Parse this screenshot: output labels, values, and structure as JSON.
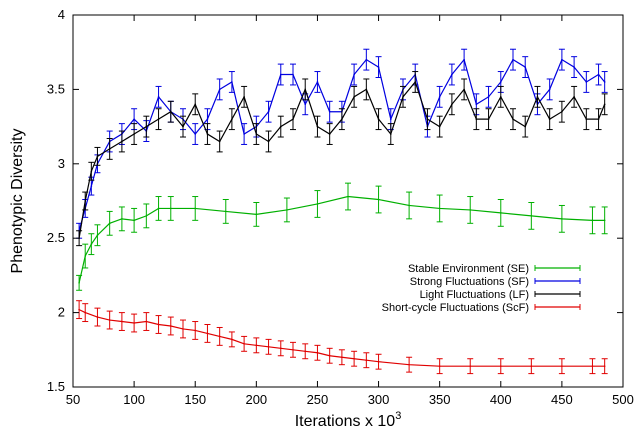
{
  "chart_data": {
    "type": "line",
    "xlabel": "Iterations x 10",
    "xlabel_superscript": "3",
    "ylabel": "Phenotypic Diversity",
    "xlim": [
      50,
      500
    ],
    "ylim": [
      1.5,
      4
    ],
    "xticks": [
      50,
      100,
      150,
      200,
      250,
      300,
      350,
      400,
      450,
      500
    ],
    "yticks": [
      1.5,
      2,
      2.5,
      3,
      3.5,
      4
    ],
    "ytick_labels": [
      "1.5",
      "2",
      "2.5",
      "3",
      "3.5",
      "4"
    ],
    "grid": false,
    "error_bars": true,
    "legend_position": "middle-right",
    "series": [
      {
        "name": "Stable Environment (SE)",
        "color": "#00b000",
        "x": [
          55,
          60,
          65,
          70,
          80,
          90,
          100,
          110,
          120,
          130,
          150,
          175,
          200,
          225,
          250,
          275,
          300,
          325,
          350,
          375,
          400,
          425,
          450,
          475,
          485
        ],
        "y": [
          2.2,
          2.38,
          2.46,
          2.52,
          2.6,
          2.63,
          2.62,
          2.65,
          2.7,
          2.7,
          2.7,
          2.68,
          2.66,
          2.69,
          2.73,
          2.78,
          2.76,
          2.72,
          2.7,
          2.69,
          2.67,
          2.65,
          2.63,
          2.62,
          2.62
        ],
        "err": [
          0.05,
          0.08,
          0.07,
          0.07,
          0.08,
          0.08,
          0.08,
          0.08,
          0.08,
          0.08,
          0.08,
          0.08,
          0.08,
          0.08,
          0.09,
          0.09,
          0.09,
          0.09,
          0.09,
          0.09,
          0.09,
          0.09,
          0.09,
          0.09,
          0.09
        ]
      },
      {
        "name": "Strong Fluctuations (SF)",
        "color": "#0000e0",
        "x": [
          55,
          60,
          65,
          70,
          80,
          90,
          100,
          110,
          120,
          130,
          140,
          150,
          160,
          170,
          180,
          190,
          200,
          210,
          220,
          230,
          240,
          250,
          260,
          270,
          280,
          290,
          300,
          310,
          320,
          330,
          340,
          350,
          360,
          370,
          380,
          390,
          400,
          410,
          420,
          430,
          440,
          450,
          460,
          470,
          480,
          485
        ],
        "y": [
          2.55,
          2.7,
          2.85,
          3.0,
          3.15,
          3.2,
          3.3,
          3.22,
          3.45,
          3.35,
          3.3,
          3.2,
          3.3,
          3.5,
          3.55,
          3.2,
          3.25,
          3.35,
          3.6,
          3.6,
          3.4,
          3.55,
          3.35,
          3.35,
          3.6,
          3.7,
          3.65,
          3.3,
          3.5,
          3.6,
          3.25,
          3.45,
          3.6,
          3.7,
          3.4,
          3.45,
          3.55,
          3.7,
          3.65,
          3.4,
          3.5,
          3.7,
          3.65,
          3.55,
          3.6,
          3.55
        ],
        "err": [
          0.05,
          0.06,
          0.06,
          0.06,
          0.07,
          0.07,
          0.07,
          0.07,
          0.07,
          0.07,
          0.07,
          0.07,
          0.07,
          0.07,
          0.07,
          0.07,
          0.07,
          0.07,
          0.07,
          0.07,
          0.07,
          0.07,
          0.07,
          0.07,
          0.07,
          0.07,
          0.07,
          0.07,
          0.07,
          0.07,
          0.07,
          0.07,
          0.07,
          0.07,
          0.07,
          0.07,
          0.07,
          0.07,
          0.07,
          0.07,
          0.07,
          0.07,
          0.07,
          0.07,
          0.07,
          0.07
        ]
      },
      {
        "name": "Light Fluctuations (LF)",
        "color": "#000000",
        "x": [
          55,
          60,
          65,
          70,
          80,
          90,
          100,
          110,
          120,
          130,
          140,
          150,
          160,
          170,
          180,
          190,
          200,
          210,
          220,
          230,
          240,
          250,
          260,
          270,
          280,
          290,
          300,
          310,
          320,
          330,
          340,
          350,
          360,
          370,
          380,
          390,
          400,
          410,
          420,
          430,
          440,
          450,
          460,
          470,
          480,
          485
        ],
        "y": [
          2.5,
          2.75,
          2.95,
          3.05,
          3.1,
          3.15,
          3.2,
          3.25,
          3.3,
          3.35,
          3.25,
          3.4,
          3.2,
          3.15,
          3.3,
          3.45,
          3.2,
          3.15,
          3.25,
          3.3,
          3.5,
          3.25,
          3.2,
          3.3,
          3.45,
          3.5,
          3.3,
          3.2,
          3.45,
          3.55,
          3.3,
          3.25,
          3.4,
          3.5,
          3.3,
          3.3,
          3.45,
          3.3,
          3.25,
          3.45,
          3.3,
          3.35,
          3.45,
          3.3,
          3.3,
          3.4
        ],
        "err": [
          0.05,
          0.06,
          0.06,
          0.06,
          0.07,
          0.07,
          0.07,
          0.07,
          0.07,
          0.07,
          0.07,
          0.07,
          0.07,
          0.07,
          0.07,
          0.07,
          0.07,
          0.07,
          0.07,
          0.07,
          0.07,
          0.07,
          0.07,
          0.07,
          0.07,
          0.07,
          0.07,
          0.07,
          0.07,
          0.07,
          0.07,
          0.07,
          0.07,
          0.07,
          0.07,
          0.07,
          0.07,
          0.07,
          0.07,
          0.07,
          0.07,
          0.07,
          0.07,
          0.07,
          0.07,
          0.07
        ]
      },
      {
        "name": "Short-cycle Fluctuations (ScF)",
        "color": "#e00000",
        "x": [
          55,
          60,
          70,
          80,
          90,
          100,
          110,
          120,
          130,
          140,
          150,
          160,
          170,
          180,
          190,
          200,
          210,
          220,
          230,
          240,
          250,
          260,
          270,
          280,
          290,
          300,
          325,
          350,
          375,
          400,
          425,
          450,
          475,
          485
        ],
        "y": [
          2.02,
          2.0,
          1.97,
          1.95,
          1.94,
          1.93,
          1.94,
          1.92,
          1.91,
          1.89,
          1.88,
          1.86,
          1.84,
          1.82,
          1.79,
          1.78,
          1.77,
          1.76,
          1.75,
          1.74,
          1.73,
          1.71,
          1.7,
          1.69,
          1.68,
          1.67,
          1.65,
          1.64,
          1.64,
          1.64,
          1.64,
          1.64,
          1.64,
          1.64
        ],
        "err": [
          0.06,
          0.06,
          0.06,
          0.06,
          0.06,
          0.06,
          0.06,
          0.06,
          0.06,
          0.06,
          0.06,
          0.06,
          0.06,
          0.05,
          0.05,
          0.05,
          0.05,
          0.05,
          0.05,
          0.05,
          0.05,
          0.05,
          0.05,
          0.05,
          0.05,
          0.05,
          0.05,
          0.05,
          0.05,
          0.05,
          0.05,
          0.05,
          0.05,
          0.05
        ]
      }
    ]
  }
}
